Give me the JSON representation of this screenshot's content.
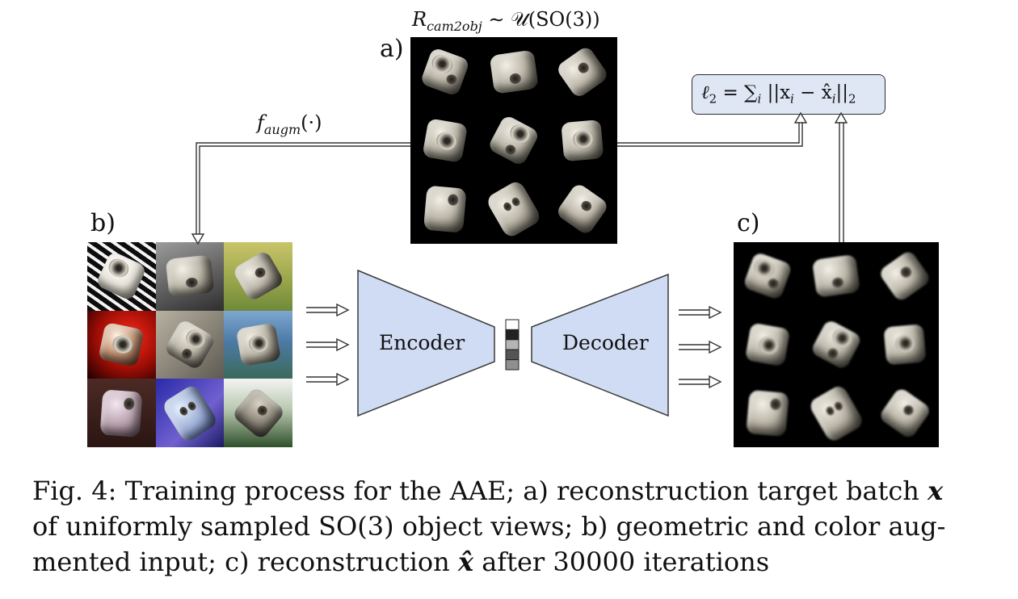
{
  "figure": {
    "top_label": "R_cam2obj ~ U(SO(3))",
    "top_label_parts": {
      "R": "R",
      "sub": "cam2obj",
      "rest": "∼ 𝒰(SO(3))"
    },
    "augm_label_parts": {
      "f": "f",
      "sub": "augm",
      "rest": "(·)"
    },
    "loss_label_parts": {
      "lhs": "ℓ",
      "lhs_sub": "2",
      "eq": " = ∑",
      "sum_sub": "i",
      "body": " ||x",
      "x_sub": "i",
      "minus": " − x̂",
      "xh_sub": "i",
      "end": "||",
      "end_sub": "2"
    },
    "panel_a_label": "a)",
    "panel_b_label": "b)",
    "panel_c_label": "c)",
    "encoder_label": "Encoder",
    "decoder_label": "Decoder",
    "colors": {
      "block_fill": "#cfdcf3",
      "block_stroke": "#3a3a3a",
      "loss_box_fill": "#dfe7f5",
      "arrow": "#333333",
      "latent_colors": [
        "#ffffff",
        "#222222",
        "#b5b5b5",
        "#555555",
        "#8f8f8f"
      ]
    }
  },
  "caption": {
    "prefix": "Fig. 4: Training process for the AAE; a) reconstruction target batch ",
    "x_symbol": "x",
    "line2": "of uniformly sampled SO(3) object views; b) geometric and color aug-",
    "line3_a": "mented input; c) reconstruction ",
    "xhat_symbol": "x̂",
    "line3_b": " after 30000 iterations"
  }
}
